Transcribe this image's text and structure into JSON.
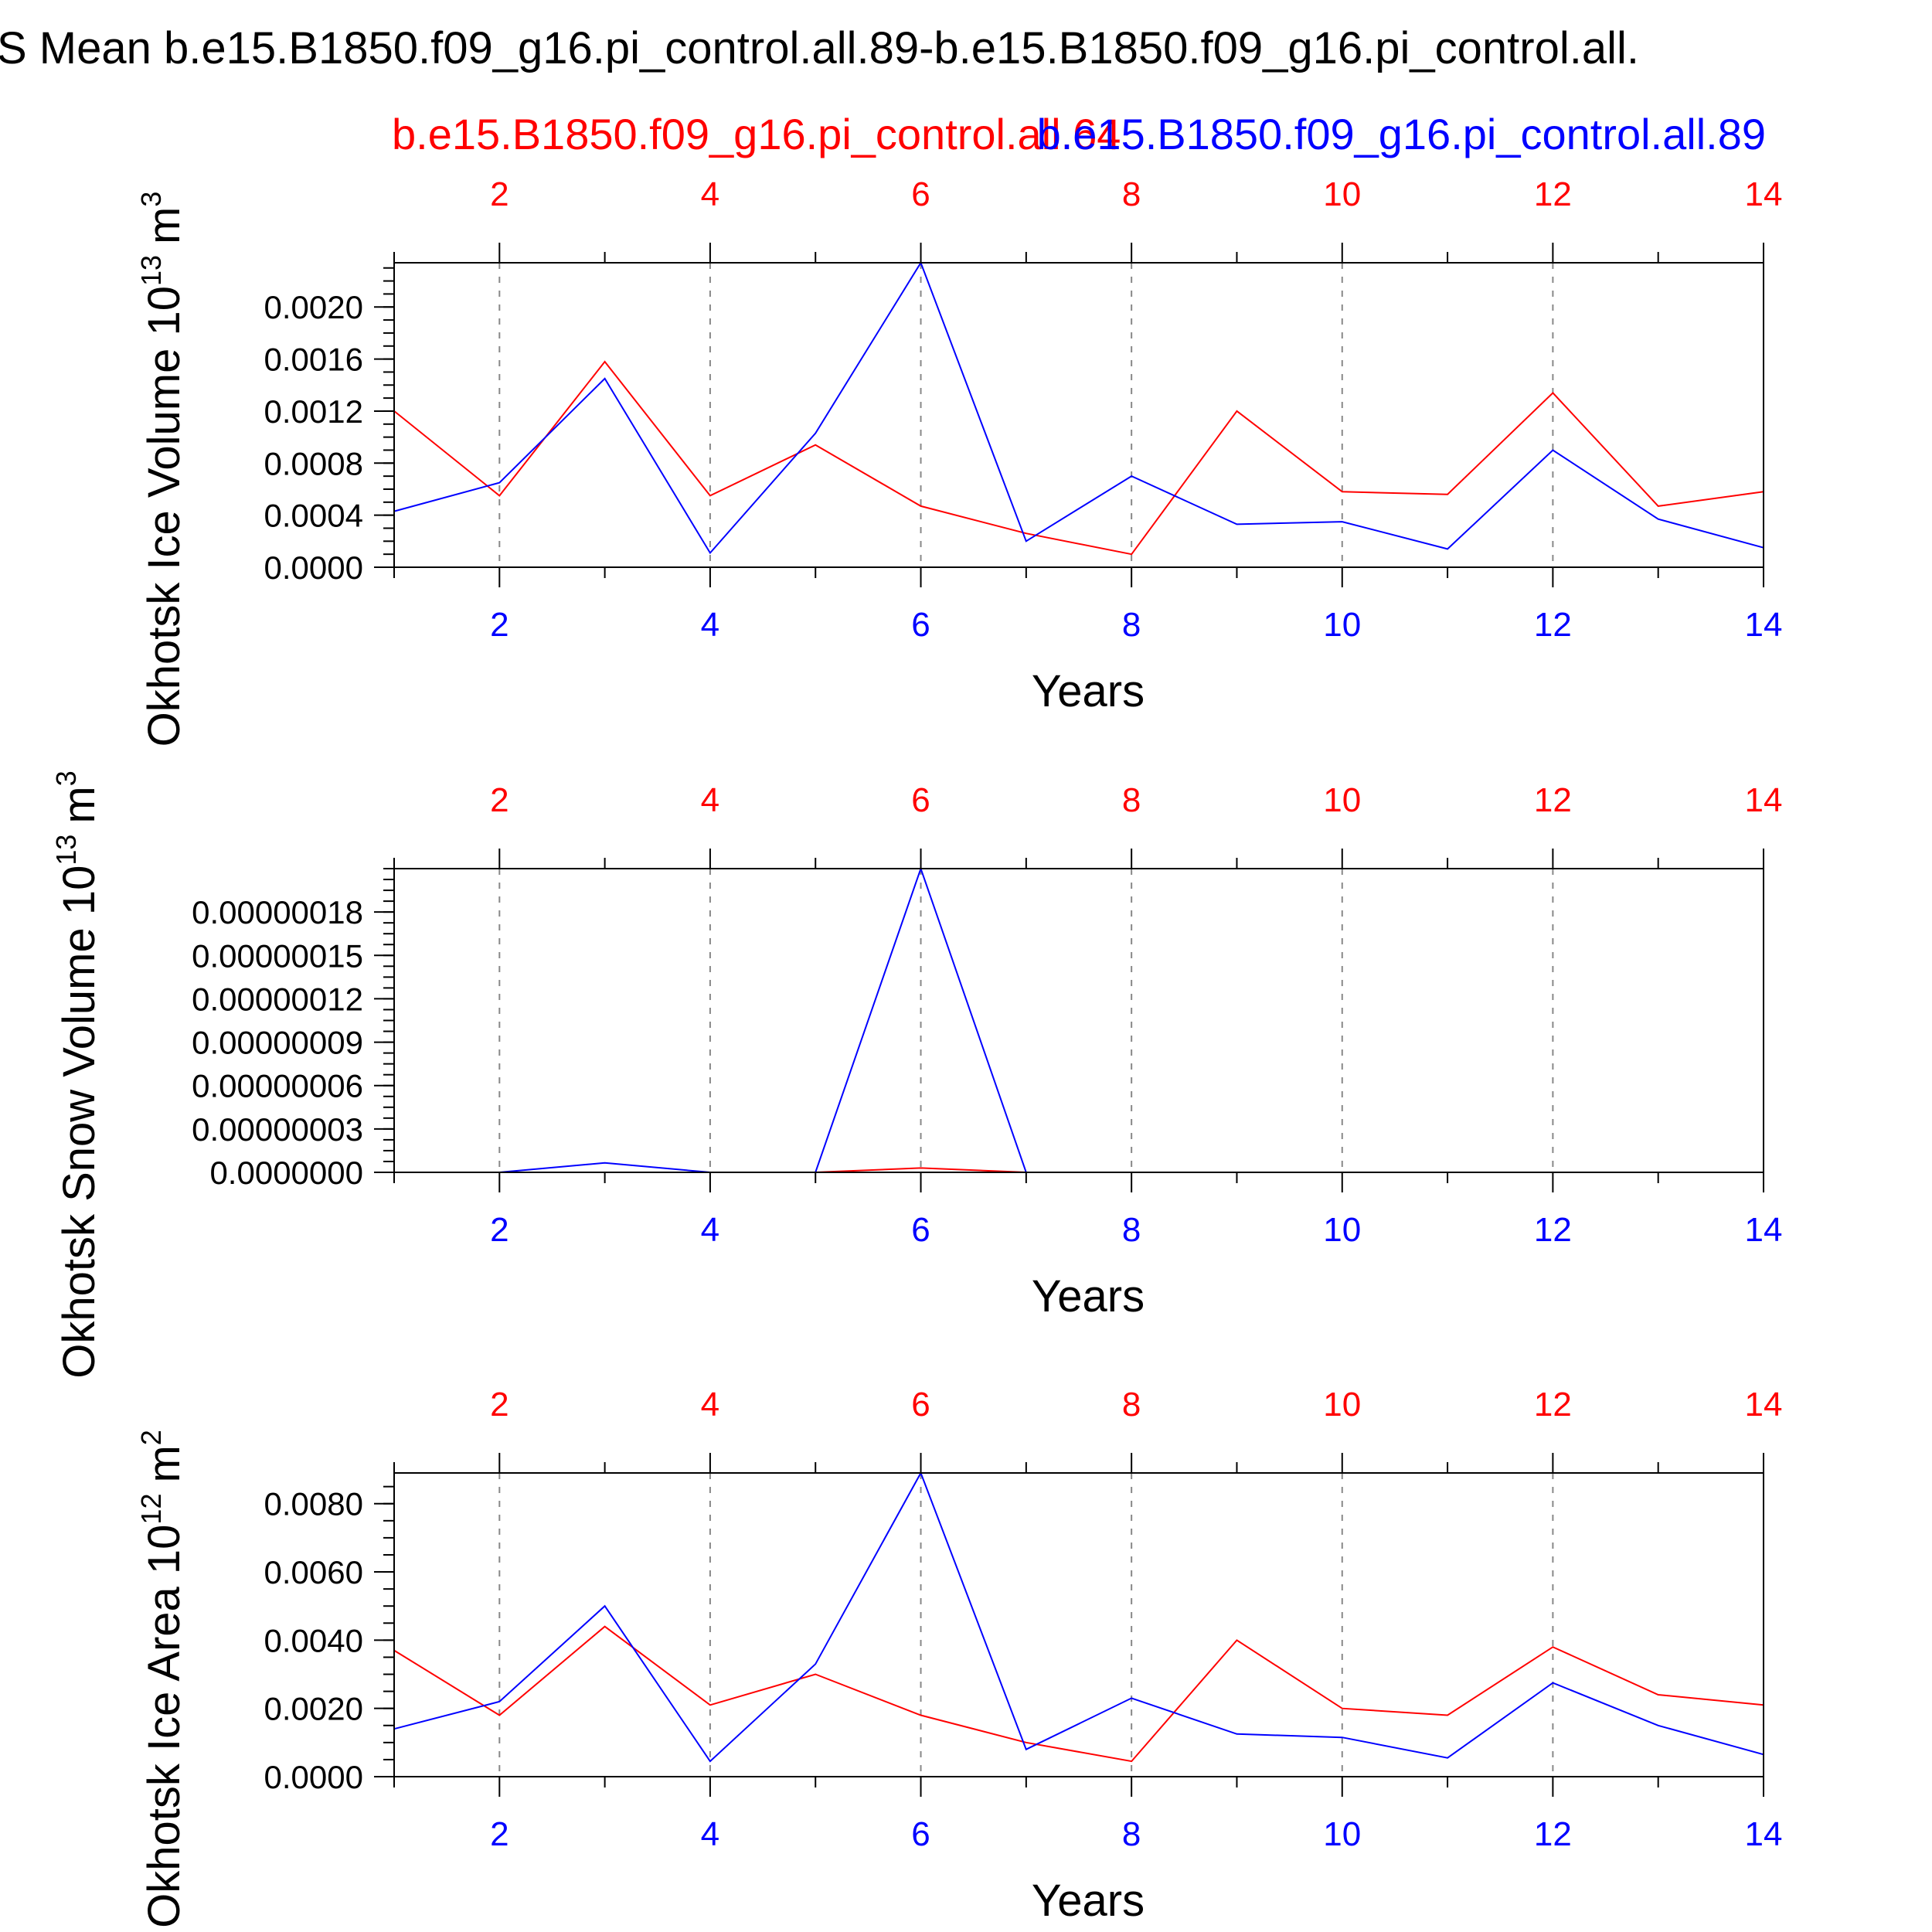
{
  "page": {
    "title": "S Mean b.e15.B1850.f09_g16.pi_control.all.89-b.e15.B1850.f09_g16.pi_control.all."
  },
  "legend": {
    "red_label": "b.e15.B1850.f09_g16.pi_control.all.64",
    "blue_label": "b.e15.B1850.f09_g16.pi_control.all.89"
  },
  "colors": {
    "red": "#ff0000",
    "blue": "#0000ff",
    "axis": "#000000",
    "grid": "#888888"
  },
  "chart_data": [
    {
      "type": "line",
      "ylabel": "Okhotsk Ice Volume 10",
      "ylabel_exp": "13",
      "ylabel_unit": "m",
      "ylabel_unit_exp": "3",
      "xlabel": "Years",
      "xlim": [
        1,
        14
      ],
      "ylim": [
        0,
        0.00234
      ],
      "yticks": [
        0,
        0.0004,
        0.0008,
        0.0012,
        0.0016,
        0.002
      ],
      "ytick_labels": [
        "0.0000",
        "0.0004",
        "0.0008",
        "0.0012",
        "0.0016",
        "0.0020"
      ],
      "x": [
        1,
        2,
        3,
        4,
        5,
        6,
        7,
        8,
        9,
        10,
        11,
        12,
        13,
        14
      ],
      "series": [
        {
          "name": "b.e15.B1850.f09_g16.pi_control.all.64",
          "color": "#ff0000",
          "values": [
            0.0012,
            0.00055,
            0.00158,
            0.00055,
            0.00094,
            0.00047,
            0.00026,
            0.0001,
            0.0012,
            0.00058,
            0.00056,
            0.00134,
            0.00047,
            0.00058
          ]
        },
        {
          "name": "b.e15.B1850.f09_g16.pi_control.all.89",
          "color": "#0000ff",
          "values": [
            0.00043,
            0.00065,
            0.00145,
            0.00011,
            0.00103,
            0.00234,
            0.0002,
            0.0007,
            0.00033,
            0.00035,
            0.00014,
            0.0009,
            0.00037,
            0.00015
          ]
        }
      ]
    },
    {
      "type": "line",
      "ylabel": "Okhotsk Snow Volume 10",
      "ylabel_exp": "13",
      "ylabel_unit": "m",
      "ylabel_unit_exp": "3",
      "xlabel": "Years",
      "xlim": [
        1,
        14
      ],
      "ylim": [
        0,
        2.1e-07
      ],
      "yticks": [
        0,
        3e-08,
        6e-08,
        9e-08,
        1.2e-07,
        1.5e-07,
        1.8e-07
      ],
      "ytick_labels": [
        "0.0000000",
        "0.00000003",
        "0.00000006",
        "0.00000009",
        "0.00000012",
        "0.00000015",
        "0.00000018"
      ],
      "x": [
        1,
        2,
        3,
        4,
        5,
        6,
        7,
        8,
        9,
        10,
        11,
        12,
        13,
        14
      ],
      "series": [
        {
          "name": "b.e15.B1850.f09_g16.pi_control.all.64",
          "color": "#ff0000",
          "values": [
            0,
            0,
            0,
            0,
            0,
            3e-09,
            0,
            0,
            0,
            0,
            0,
            0,
            0,
            0
          ]
        },
        {
          "name": "b.e15.B1850.f09_g16.pi_control.all.89",
          "color": "#0000ff",
          "values": [
            0,
            0,
            6.5e-09,
            0,
            0,
            2.1e-07,
            0,
            0,
            0,
            0,
            0,
            0,
            0,
            0
          ]
        }
      ]
    },
    {
      "type": "line",
      "ylabel": "Okhotsk Ice Area 10",
      "ylabel_exp": "12",
      "ylabel_unit": "m",
      "ylabel_unit_exp": "2",
      "xlabel": "Years",
      "xlim": [
        1,
        14
      ],
      "ylim": [
        0,
        0.0089
      ],
      "yticks": [
        0,
        0.002,
        0.004,
        0.006,
        0.008
      ],
      "ytick_labels": [
        "0.0000",
        "0.0020",
        "0.0040",
        "0.0060",
        "0.0080"
      ],
      "x": [
        1,
        2,
        3,
        4,
        5,
        6,
        7,
        8,
        9,
        10,
        11,
        12,
        13,
        14
      ],
      "series": [
        {
          "name": "b.e15.B1850.f09_g16.pi_control.all.64",
          "color": "#ff0000",
          "values": [
            0.0037,
            0.0018,
            0.0044,
            0.0021,
            0.003,
            0.0018,
            0.001,
            0.00045,
            0.004,
            0.002,
            0.0018,
            0.0038,
            0.0024,
            0.0021
          ]
        },
        {
          "name": "b.e15.B1850.f09_g16.pi_control.all.89",
          "color": "#0000ff",
          "values": [
            0.0014,
            0.0022,
            0.005,
            0.00045,
            0.0033,
            0.0089,
            0.0008,
            0.0023,
            0.00125,
            0.00115,
            0.00055,
            0.00275,
            0.0015,
            0.00065
          ]
        }
      ]
    }
  ]
}
